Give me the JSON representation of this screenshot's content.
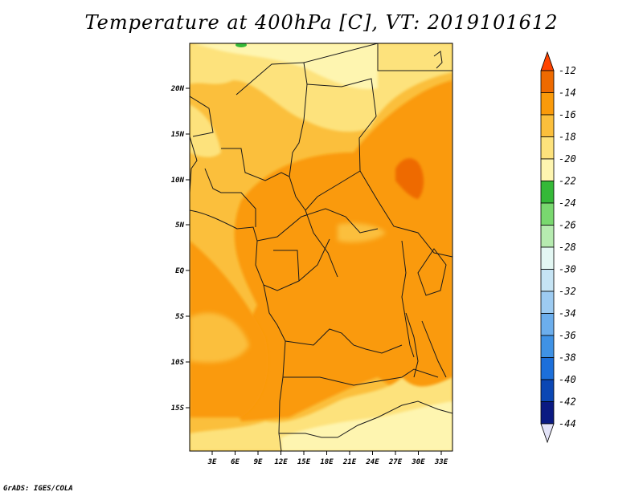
{
  "title": "Temperature at 400hPa [C], VT: 2019101612",
  "credit": "GrADS: IGES/COLA",
  "map": {
    "lat_labels": [
      "20N",
      "15N",
      "10N",
      "5N",
      "EQ",
      "5S",
      "10S",
      "15S"
    ],
    "lon_labels": [
      "3E",
      "6E",
      "9E",
      "12E",
      "15E",
      "18E",
      "21E",
      "24E",
      "27E",
      "30E",
      "33E"
    ]
  },
  "colorbar": {
    "labels": [
      "-12",
      "-14",
      "-16",
      "-18",
      "-20",
      "-22",
      "-24",
      "-26",
      "-28",
      "-30",
      "-32",
      "-34",
      "-36",
      "-38",
      "-40",
      "-42",
      "-44"
    ],
    "colors": [
      "#ff4400",
      "#ee6a00",
      "#fa9a0a",
      "#fbbf3c",
      "#fde27c",
      "#fef5b0",
      "#35b938",
      "#79d86f",
      "#b6ebb0",
      "#e3f7f3",
      "#c6e4f4",
      "#9dcbf1",
      "#6caeec",
      "#3f92e5",
      "#1c6fda",
      "#0b47b4",
      "#0a1a82",
      "#e3e3f8"
    ]
  }
}
